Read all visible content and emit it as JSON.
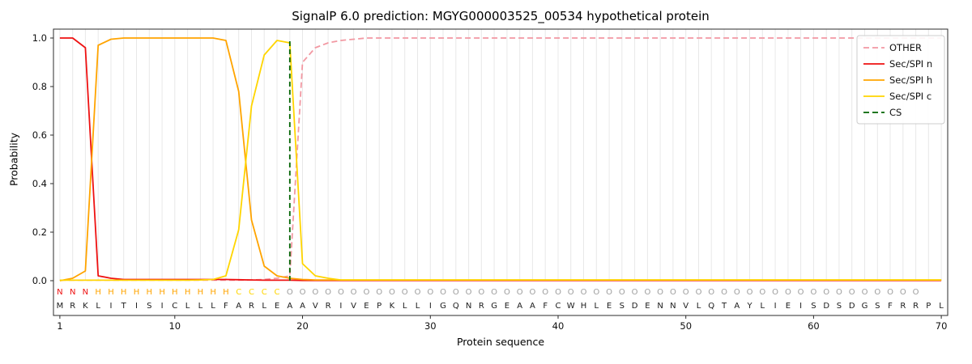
{
  "chart_data": {
    "type": "line",
    "title": "SignalP 6.0 prediction: MGYG000003525_00534 hypothetical protein",
    "xlabel": "Protein sequence",
    "ylabel": "Probability",
    "xlim": [
      0.5,
      70.5
    ],
    "ylim": [
      -0.14,
      1.04
    ],
    "xticks": [
      1,
      10,
      20,
      30,
      40,
      50,
      60,
      70
    ],
    "yticks": [
      "0.0",
      "0.2",
      "0.4",
      "0.6",
      "0.8",
      "1.0"
    ],
    "grid": "vertical-line-per-position",
    "legend_position": "upper right",
    "sequence": "MRKLITISICLLLFARLEAAVRIVEPKLLIGQNRGEAAFCWHLESDENNVLQTAYLIEISDSDGSFRRPL",
    "region_labels": "NNNHHHHHHHHHHHCCCCOOOOOOOOOOOOOOOOOOOOOOOOOOOOOOOOOOOOOOOOOOOOOOOOOO",
    "region_colors": {
      "N": "#ee1111",
      "H": "#ffa400",
      "C": "#ffd500",
      "O": "#9e9e9e"
    },
    "sequence_color": "#1a1a1a",
    "cs": {
      "label": "CS",
      "position": 19,
      "color": "#006400"
    },
    "series": [
      {
        "name": "OTHER",
        "color": "#f298a2",
        "dashed": true,
        "values": [
          0.002,
          0.002,
          0.002,
          0.002,
          0.002,
          0.002,
          0.002,
          0.002,
          0.002,
          0.002,
          0.002,
          0.002,
          0.002,
          0.002,
          0.002,
          0.003,
          0.005,
          0.01,
          0.02,
          0.9,
          0.96,
          0.98,
          0.99,
          0.995,
          1.0,
          1.0,
          1.0,
          1.0,
          1.0,
          1.0,
          1.0,
          1.0,
          1.0,
          1.0,
          1.0,
          1.0,
          1.0,
          1.0,
          1.0,
          1.0,
          1.0,
          1.0,
          1.0,
          1.0,
          1.0,
          1.0,
          1.0,
          1.0,
          1.0,
          1.0,
          1.0,
          1.0,
          1.0,
          1.0,
          1.0,
          1.0,
          1.0,
          1.0,
          1.0,
          1.0,
          1.0,
          1.0,
          1.0,
          1.0,
          1.0,
          1.0,
          1.0,
          1.0,
          1.0,
          1.0
        ]
      },
      {
        "name": "Sec/SPI n",
        "color": "#ee1111",
        "dashed": false,
        "values": [
          1.0,
          1.0,
          0.96,
          0.02,
          0.01,
          0.005,
          0.005,
          0.005,
          0.005,
          0.005,
          0.005,
          0.005,
          0.005,
          0.005,
          0.004,
          0.003,
          0.002,
          0.002,
          0.002,
          0.001,
          0.001,
          0.001,
          0.001,
          0.001,
          0.001,
          0.001,
          0.001,
          0.001,
          0.001,
          0.001,
          0.001,
          0.001,
          0.001,
          0.001,
          0.001,
          0.001,
          0.001,
          0.001,
          0.001,
          0.001,
          0.001,
          0.001,
          0.001,
          0.001,
          0.001,
          0.001,
          0.001,
          0.001,
          0.001,
          0.001,
          0.001,
          0.001,
          0.001,
          0.001,
          0.001,
          0.001,
          0.001,
          0.001,
          0.001,
          0.001,
          0.001,
          0.001,
          0.001,
          0.001,
          0.001,
          0.001,
          0.001,
          0.001,
          0.001,
          0.001
        ]
      },
      {
        "name": "Sec/SPI h",
        "color": "#ffa400",
        "dashed": false,
        "values": [
          0.0,
          0.01,
          0.04,
          0.97,
          0.995,
          1.0,
          1.0,
          1.0,
          1.0,
          1.0,
          1.0,
          1.0,
          1.0,
          0.99,
          0.78,
          0.25,
          0.06,
          0.02,
          0.01,
          0.005,
          0.003,
          0.003,
          0.003,
          0.003,
          0.003,
          0.003,
          0.003,
          0.003,
          0.003,
          0.003,
          0.003,
          0.003,
          0.003,
          0.003,
          0.003,
          0.003,
          0.003,
          0.003,
          0.003,
          0.003,
          0.003,
          0.003,
          0.003,
          0.003,
          0.003,
          0.003,
          0.003,
          0.003,
          0.003,
          0.003,
          0.003,
          0.003,
          0.003,
          0.003,
          0.003,
          0.003,
          0.003,
          0.003,
          0.003,
          0.003,
          0.003,
          0.003,
          0.003,
          0.003,
          0.003,
          0.003,
          0.003,
          0.003,
          0.003,
          0.003
        ]
      },
      {
        "name": "Sec/SPI c",
        "color": "#ffd500",
        "dashed": false,
        "values": [
          0.002,
          0.002,
          0.002,
          0.002,
          0.002,
          0.002,
          0.002,
          0.002,
          0.002,
          0.002,
          0.002,
          0.003,
          0.005,
          0.02,
          0.21,
          0.72,
          0.93,
          0.99,
          0.98,
          0.07,
          0.02,
          0.01,
          0.003,
          0.003,
          0.003,
          0.003,
          0.003,
          0.003,
          0.003,
          0.003,
          0.003,
          0.003,
          0.003,
          0.003,
          0.003,
          0.003,
          0.003,
          0.003,
          0.003,
          0.003,
          0.003,
          0.003,
          0.003,
          0.003,
          0.003,
          0.003,
          0.003,
          0.003,
          0.003,
          0.003,
          0.003,
          0.003,
          0.003,
          0.003,
          0.003,
          0.003,
          0.003,
          0.003,
          0.003,
          0.003,
          0.003,
          0.003,
          0.003,
          0.003,
          0.003,
          0.003,
          0.003,
          0.003,
          0.003,
          0.003
        ]
      }
    ]
  }
}
